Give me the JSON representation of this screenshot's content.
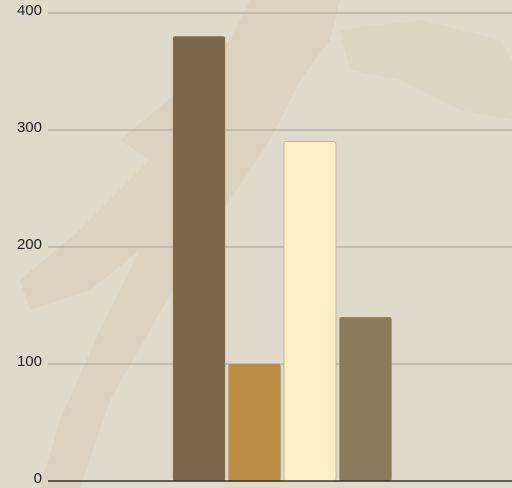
{
  "chart_data": {
    "type": "bar",
    "values": [
      380,
      100,
      290,
      140
    ],
    "colors": [
      "#7a6649",
      "#ba8f45",
      "#fdf0c4",
      "#8a7b5c"
    ],
    "ylim": [
      0,
      400
    ],
    "yticks": [
      0,
      100,
      200,
      300,
      400
    ],
    "grid": true
  }
}
